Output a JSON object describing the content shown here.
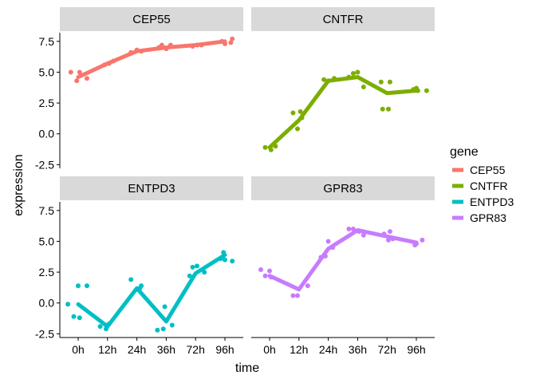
{
  "chart_data": {
    "type": "line",
    "xlabel": "time",
    "ylabel": "expression",
    "x_categories": [
      "0h",
      "12h",
      "24h",
      "36h",
      "72h",
      "96h"
    ],
    "y_ticks": [
      -2.5,
      0.0,
      2.5,
      5.0,
      7.5
    ],
    "y_tick_labels": [
      "-2.5",
      "0.0",
      "2.5",
      "5.0",
      "7.5"
    ],
    "ylim": [
      -2.8,
      8.2
    ],
    "legend": {
      "title": "gene",
      "position": "right"
    },
    "facets": [
      {
        "gene": "CEP55",
        "color": "#F8766D",
        "mean": [
          4.6,
          5.7,
          6.7,
          7.0,
          7.2,
          7.5
        ],
        "points": [
          [
            -0.25,
            5.0
          ],
          [
            -0.05,
            4.3
          ],
          [
            0.05,
            5.0
          ],
          [
            0.3,
            4.5
          ],
          [
            0.9,
            5.6
          ],
          [
            1.05,
            5.7
          ],
          [
            1.2,
            5.9
          ],
          [
            1.8,
            6.6
          ],
          [
            2.0,
            6.8
          ],
          [
            2.15,
            6.7
          ],
          [
            2.75,
            7.0
          ],
          [
            2.85,
            7.2
          ],
          [
            3.0,
            6.9
          ],
          [
            3.15,
            7.2
          ],
          [
            3.9,
            7.1
          ],
          [
            4.05,
            7.2
          ],
          [
            4.2,
            7.2
          ],
          [
            4.9,
            7.5
          ],
          [
            5.0,
            7.3
          ],
          [
            5.25,
            7.7
          ],
          [
            5.2,
            7.4
          ]
        ]
      },
      {
        "gene": "CNTFR",
        "color": "#7CAE00",
        "mean": [
          -1.1,
          1.1,
          4.3,
          4.6,
          3.3,
          3.5
        ],
        "points": [
          [
            -0.15,
            -1.1
          ],
          [
            0.05,
            -1.3
          ],
          [
            0.2,
            -1.0
          ],
          [
            0.8,
            1.7
          ],
          [
            0.95,
            0.4
          ],
          [
            1.05,
            1.8
          ],
          [
            1.1,
            1.3
          ],
          [
            1.85,
            4.4
          ],
          [
            2.0,
            4.3
          ],
          [
            2.2,
            4.5
          ],
          [
            2.7,
            4.6
          ],
          [
            2.85,
            4.9
          ],
          [
            3.0,
            5.0
          ],
          [
            3.2,
            3.8
          ],
          [
            3.8,
            4.2
          ],
          [
            3.85,
            2.0
          ],
          [
            4.05,
            2.0
          ],
          [
            4.1,
            4.2
          ],
          [
            4.9,
            3.6
          ],
          [
            5.0,
            3.7
          ],
          [
            5.05,
            3.5
          ],
          [
            5.35,
            3.5
          ]
        ]
      },
      {
        "gene": "ENTPD3",
        "color": "#00BFC4",
        "mean": [
          -0.1,
          -1.9,
          1.2,
          -1.5,
          2.4,
          3.9
        ],
        "points": [
          [
            -0.35,
            -0.1
          ],
          [
            -0.15,
            -1.1
          ],
          [
            0.0,
            1.4
          ],
          [
            0.05,
            -1.2
          ],
          [
            0.3,
            1.4
          ],
          [
            0.75,
            -1.9
          ],
          [
            0.95,
            -2.1
          ],
          [
            1.05,
            -1.7
          ],
          [
            1.8,
            1.9
          ],
          [
            2.0,
            1.1
          ],
          [
            2.1,
            1.2
          ],
          [
            2.15,
            1.4
          ],
          [
            2.7,
            -2.2
          ],
          [
            2.9,
            -2.1
          ],
          [
            2.95,
            -0.3
          ],
          [
            3.2,
            -1.8
          ],
          [
            3.8,
            2.2
          ],
          [
            3.9,
            2.9
          ],
          [
            4.05,
            3.0
          ],
          [
            4.3,
            2.5
          ],
          [
            4.85,
            3.6
          ],
          [
            4.95,
            4.1
          ],
          [
            5.0,
            3.5
          ],
          [
            5.25,
            3.4
          ]
        ]
      },
      {
        "gene": "GPR83",
        "color": "#C77CFF",
        "mean": [
          2.2,
          1.1,
          4.4,
          5.9,
          5.4,
          4.9
        ],
        "points": [
          [
            -0.3,
            2.7
          ],
          [
            -0.15,
            2.2
          ],
          [
            0.0,
            2.6
          ],
          [
            0.05,
            2.1
          ],
          [
            0.8,
            0.6
          ],
          [
            0.95,
            0.6
          ],
          [
            1.3,
            1.4
          ],
          [
            1.75,
            3.7
          ],
          [
            1.9,
            3.8
          ],
          [
            2.0,
            5.0
          ],
          [
            2.15,
            4.5
          ],
          [
            2.7,
            6.0
          ],
          [
            2.85,
            6.0
          ],
          [
            3.05,
            5.8
          ],
          [
            3.2,
            5.5
          ],
          [
            3.9,
            5.6
          ],
          [
            4.05,
            5.1
          ],
          [
            4.1,
            5.8
          ],
          [
            4.2,
            5.2
          ],
          [
            4.95,
            4.7
          ],
          [
            5.0,
            4.8
          ],
          [
            5.2,
            5.1
          ]
        ]
      }
    ]
  }
}
